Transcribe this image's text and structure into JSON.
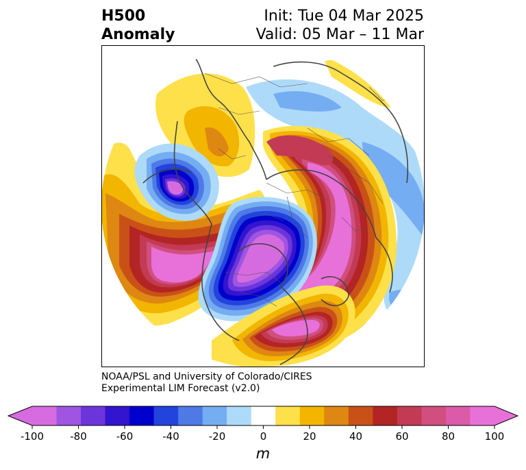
{
  "title": {
    "line1": "H500",
    "line2": "Anomaly",
    "init": "Init: Tue 04 Mar 2025",
    "valid": "Valid: 05 Mar – 11 Mar"
  },
  "credit": {
    "line1": "NOAA/PSL and University of Colorado/CIRES",
    "line2": "Experimental LIM Forecast (v2.0)"
  },
  "colorbar": {
    "unit": "m",
    "ticks": [
      "-100",
      "-80",
      "-60",
      "-40",
      "-20",
      "0",
      "20",
      "40",
      "60",
      "80",
      "100"
    ],
    "colors": [
      "#d66be0",
      "#9f55e2",
      "#6c35dc",
      "#3314cf",
      "#0000cd",
      "#2244dd",
      "#4f79e6",
      "#74adf2",
      "#aedaf9",
      "#ffffff",
      "#fee04a",
      "#f2b500",
      "#de8712",
      "#c95117",
      "#b32424",
      "#c33a54",
      "#d04f7e",
      "#db5ba8",
      "#e870d9"
    ],
    "under_color": "#d66be0",
    "over_color": "#e870d9"
  }
}
